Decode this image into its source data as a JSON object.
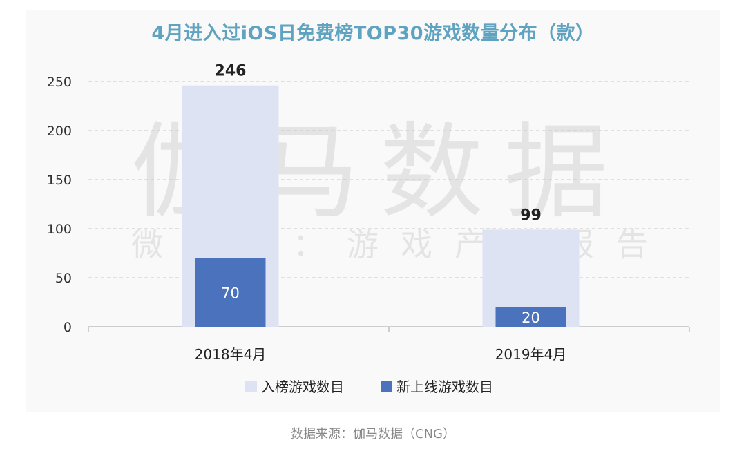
{
  "title": "4月进入过iOS日免费榜TOP30游戏数量分布（款）",
  "watermark": {
    "main": "伽马数据",
    "sub": "微信号：游戏产业报告"
  },
  "source": "数据来源：伽马数据（CNG）",
  "colors": {
    "series_light": "#dde3f3",
    "series_dark": "#4a72bd",
    "title": "#5fa3c0"
  },
  "chart_data": {
    "type": "bar",
    "title": "4月进入过iOS日免费榜TOP30游戏数量分布（款）",
    "xlabel": "",
    "ylabel": "",
    "categories": [
      "2018年4月",
      "2019年4月"
    ],
    "series": [
      {
        "name": "入榜游戏数目",
        "values": [
          246,
          99
        ]
      },
      {
        "name": "新上线游戏数目",
        "values": [
          70,
          20
        ]
      }
    ],
    "ylim": [
      0,
      250
    ],
    "yticks": [
      0,
      50,
      100,
      150,
      200,
      250
    ],
    "grid": true,
    "legend": "bottom"
  }
}
